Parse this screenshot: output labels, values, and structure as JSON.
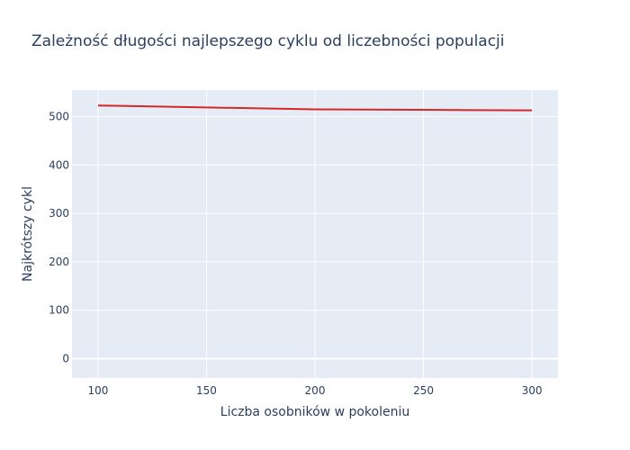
{
  "chart_data": {
    "type": "line",
    "title": "Zależność długości najlepszego cyklu od liczebności populacji",
    "xlabel": "Liczba osobników w pokoleniu",
    "ylabel": "Najkrótszy cykl",
    "xlim": [
      88,
      312
    ],
    "ylim": [
      -40,
      555
    ],
    "xticks": [
      100,
      150,
      200,
      250,
      300
    ],
    "yticks": [
      0,
      100,
      200,
      300,
      400,
      500
    ],
    "grid": true,
    "plot_bg": "#e5ecf6",
    "series": [
      {
        "color": "#d62728",
        "x": [
          100,
          150,
          200,
          250,
          300
        ],
        "y": [
          523,
          519,
          515,
          514,
          513
        ]
      }
    ]
  }
}
